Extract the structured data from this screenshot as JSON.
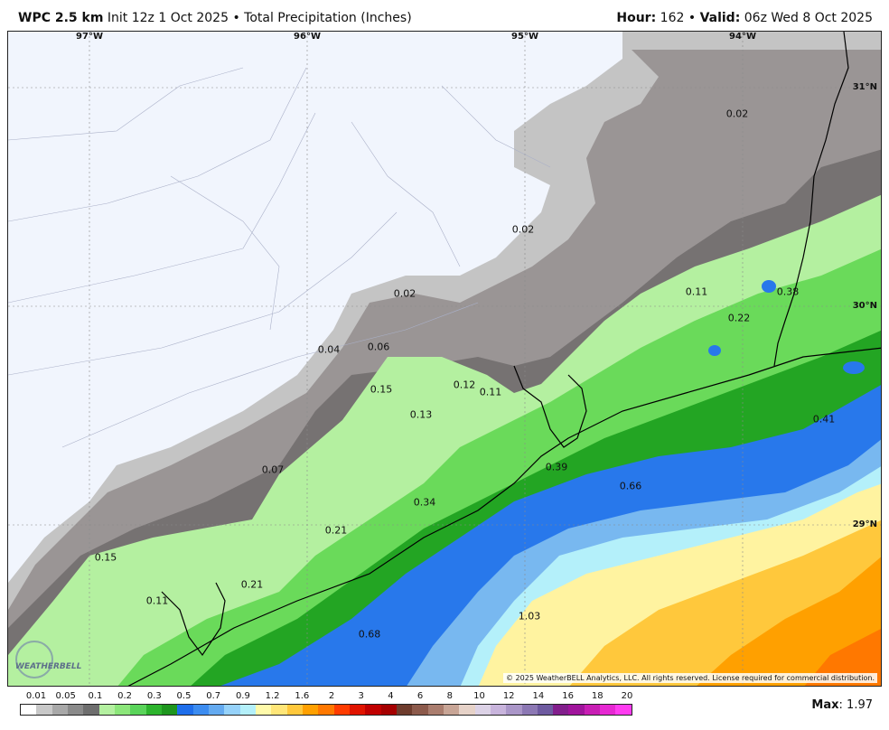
{
  "header": {
    "model": "WPC 2.5 km",
    "init": "Init 12z 1 Oct 2025",
    "product": "Total Precipitation (Inches)",
    "hour_label": "Hour",
    "hour": "162",
    "valid_label": "Valid",
    "valid": "06z Wed 8 Oct 2025"
  },
  "map": {
    "longitudes": [
      "97°W",
      "96°W",
      "95°W",
      "94°W"
    ],
    "latitudes": [
      "31°N",
      "30°N",
      "29°N"
    ],
    "values": [
      "0.02",
      "0.02",
      "0.02",
      "0.11",
      "0.38",
      "0.22",
      "0.04",
      "0.06",
      "0.12",
      "0.11",
      "0.15",
      "0.13",
      "0.41",
      "0.39",
      "0.07",
      "0.66",
      "0.34",
      "0.21",
      "0.15",
      "0.21",
      "0.11",
      "1.03",
      "0.68"
    ],
    "copyright": "© 2025 WeatherBELL Analytics, LLC. All rights reserved. License required for commercial distribution.",
    "logo": "WEATHERBELL"
  },
  "legend": {
    "labels": [
      "0.01",
      "0.05",
      "0.1",
      "0.2",
      "0.3",
      "0.5",
      "0.7",
      "0.9",
      "1.2",
      "1.6",
      "2",
      "3",
      "4",
      "6",
      "8",
      "10",
      "12",
      "14",
      "16",
      "18",
      "20"
    ],
    "colors": [
      "#ffffff",
      "#c8c8c8",
      "#a8a8a8",
      "#8a8a8a",
      "#6e6e6e",
      "#b4f0a0",
      "#8ce67a",
      "#5ad45a",
      "#2db42d",
      "#1e961e",
      "#1e6eeb",
      "#3c8cf0",
      "#64aaf0",
      "#96d2fa",
      "#b4f0fa",
      "#fffaaa",
      "#ffe678",
      "#ffc83c",
      "#ffa000",
      "#ff7800",
      "#ff3c00",
      "#e11400",
      "#c00000",
      "#a50000",
      "#6e3c2d",
      "#8c5a4b",
      "#aa7d6e",
      "#c8a596",
      "#e6d2c8",
      "#dcd2e6",
      "#c8b4dc",
      "#aa96c8",
      "#8c78b4",
      "#6e5aa0",
      "#821e8c",
      "#a0149c",
      "#c81eb4",
      "#e628d2",
      "#ff3cf0"
    ],
    "max_label": "Max",
    "max_value": "1.97"
  }
}
